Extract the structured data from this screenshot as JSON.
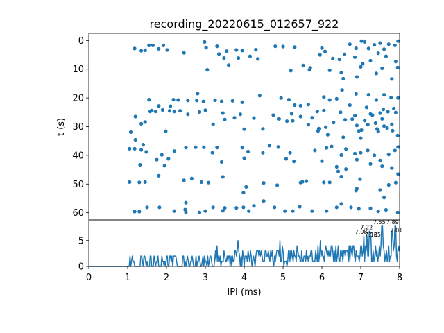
{
  "chart_data": [
    {
      "type": "scatter",
      "title": "recording_20220615_012657_922",
      "xlabel": "",
      "ylabel": "t (s)",
      "xlim": [
        0,
        8
      ],
      "ylim": [
        62.5,
        -2.5
      ],
      "y_inverted": true,
      "xticks": [],
      "yticks": [
        "0",
        "10",
        "20",
        "30",
        "40",
        "50",
        "60"
      ],
      "marker_color": "#1f77b4",
      "grid": false,
      "points": [
        [
          1.18,
          59.6
        ],
        [
          1.3,
          59.6
        ],
        [
          1.5,
          58.1
        ],
        [
          1.82,
          58.1
        ],
        [
          2.2,
          59.4
        ],
        [
          2.48,
          58.9
        ],
        [
          2.5,
          56.5
        ],
        [
          2.5,
          59.8
        ],
        [
          2.85,
          59.9
        ],
        [
          3.0,
          59.4
        ],
        [
          3.2,
          58.1
        ],
        [
          3.45,
          59.3
        ],
        [
          3.5,
          58.3
        ],
        [
          3.8,
          58.3
        ],
        [
          3.98,
          58.1
        ],
        [
          4.12,
          59.4
        ],
        [
          4.25,
          57.6
        ],
        [
          4.5,
          55.9
        ],
        [
          4.78,
          58.1
        ],
        [
          5.05,
          59.4
        ],
        [
          5.25,
          59.4
        ],
        [
          5.43,
          57.9
        ],
        [
          5.75,
          59.4
        ],
        [
          6.12,
          59.4
        ],
        [
          6.38,
          58.1
        ],
        [
          6.5,
          56.9
        ],
        [
          6.75,
          58.1
        ],
        [
          6.95,
          58.6
        ],
        [
          7.25,
          58.5
        ],
        [
          7.45,
          59.5
        ],
        [
          7.65,
          59.0
        ],
        [
          7.95,
          59.9
        ],
        [
          1.05,
          49.3
        ],
        [
          1.3,
          49.4
        ],
        [
          1.45,
          49.3
        ],
        [
          1.8,
          47.1
        ],
        [
          1.95,
          43.6
        ],
        [
          2.05,
          41.2
        ],
        [
          2.45,
          48.7
        ],
        [
          2.65,
          48.1
        ],
        [
          2.9,
          49.3
        ],
        [
          3.08,
          49.5
        ],
        [
          3.45,
          47.5
        ],
        [
          3.98,
          53.0
        ],
        [
          4.05,
          51.0
        ],
        [
          4.5,
          49.6
        ],
        [
          4.85,
          50.4
        ],
        [
          5.45,
          49.5
        ],
        [
          5.6,
          49.0
        ],
        [
          6.05,
          49.4
        ],
        [
          6.2,
          49.4
        ],
        [
          6.5,
          47.4
        ],
        [
          6.9,
          51.6
        ],
        [
          6.98,
          48.3
        ],
        [
          7.5,
          52.1
        ],
        [
          7.72,
          50.3
        ],
        [
          7.9,
          49.5
        ],
        [
          6.88,
          52.3
        ],
        [
          5.5,
          49.2
        ],
        [
          7.6,
          54.7
        ],
        [
          1.05,
          37.7
        ],
        [
          1.18,
          37.7
        ],
        [
          1.2,
          34.6
        ],
        [
          1.32,
          43.3
        ],
        [
          1.35,
          38.1
        ],
        [
          1.4,
          36.3
        ],
        [
          1.48,
          38.8
        ],
        [
          1.75,
          41.5
        ],
        [
          1.88,
          39.8
        ],
        [
          2.2,
          38.5
        ],
        [
          2.5,
          37.3
        ],
        [
          2.75,
          37.2
        ],
        [
          2.96,
          37.2
        ],
        [
          3.18,
          39.1
        ],
        [
          3.3,
          37.3
        ],
        [
          3.42,
          42.3
        ],
        [
          3.95,
          37.3
        ],
        [
          4.0,
          41.0
        ],
        [
          4.1,
          38.7
        ],
        [
          4.48,
          39.1
        ],
        [
          4.65,
          36.6
        ],
        [
          4.88,
          37.1
        ],
        [
          5.08,
          41.2
        ],
        [
          5.28,
          42.1
        ],
        [
          5.18,
          39.1
        ],
        [
          5.82,
          38.3
        ],
        [
          6.12,
          37.4
        ],
        [
          6.25,
          36.9
        ],
        [
          6.5,
          39.9
        ],
        [
          6.62,
          37.8
        ],
        [
          6.85,
          39.4
        ],
        [
          7.0,
          39.1
        ],
        [
          7.18,
          38.3
        ],
        [
          7.35,
          40.0
        ],
        [
          7.5,
          41.8
        ],
        [
          7.72,
          39.7
        ],
        [
          7.88,
          38.3
        ],
        [
          7.96,
          37.1
        ],
        [
          6.0,
          42.0
        ],
        [
          6.38,
          44.0
        ],
        [
          6.9,
          41.5
        ],
        [
          7.25,
          43.0
        ],
        [
          7.55,
          43.8
        ],
        [
          7.8,
          44.4
        ],
        [
          7.96,
          46.5
        ],
        [
          6.42,
          45.6
        ],
        [
          6.62,
          44.8
        ],
        [
          1.08,
          31.9
        ],
        [
          1.2,
          26.5
        ],
        [
          1.35,
          29.0
        ],
        [
          1.45,
          28.4
        ],
        [
          1.58,
          24.7
        ],
        [
          1.72,
          24.7
        ],
        [
          1.9,
          24.2
        ],
        [
          1.98,
          31.6
        ],
        [
          2.08,
          24.5
        ],
        [
          2.2,
          24.7
        ],
        [
          2.35,
          24.5
        ],
        [
          2.55,
          25.7
        ],
        [
          2.85,
          24.9
        ],
        [
          3.0,
          24.3
        ],
        [
          3.2,
          29.2
        ],
        [
          3.45,
          25.3
        ],
        [
          3.5,
          27.5
        ],
        [
          3.75,
          26.9
        ],
        [
          3.9,
          25.7
        ],
        [
          4.0,
          30.9
        ],
        [
          4.25,
          27.0
        ],
        [
          4.48,
          30.8
        ],
        [
          4.75,
          26.0
        ],
        [
          4.9,
          27.3
        ],
        [
          5.1,
          28.1
        ],
        [
          5.22,
          25.5
        ],
        [
          5.45,
          26.5
        ],
        [
          5.65,
          29.3
        ],
        [
          5.75,
          26.9
        ],
        [
          5.92,
          30.7
        ],
        [
          6.1,
          30.2
        ],
        [
          6.3,
          28.6
        ],
        [
          6.48,
          25.0
        ],
        [
          6.6,
          27.6
        ],
        [
          6.78,
          27.4
        ],
        [
          6.9,
          29.6
        ],
        [
          7.02,
          31.2
        ],
        [
          7.18,
          29.3
        ],
        [
          7.3,
          26.0
        ],
        [
          7.42,
          30.8
        ],
        [
          7.55,
          27.3
        ],
        [
          7.68,
          30.5
        ],
        [
          7.82,
          31.4
        ],
        [
          7.95,
          33.1
        ],
        [
          6.15,
          32.8
        ],
        [
          6.55,
          33.7
        ],
        [
          7.0,
          34.0
        ],
        [
          6.85,
          26.2
        ],
        [
          7.25,
          25.6
        ],
        [
          7.5,
          25.3
        ],
        [
          7.7,
          24.8
        ],
        [
          7.9,
          25.1
        ],
        [
          7.15,
          23.3
        ],
        [
          7.58,
          24.0
        ],
        [
          7.85,
          23.7
        ],
        [
          7.1,
          27.9
        ],
        [
          7.38,
          28.8
        ],
        [
          7.6,
          29.8
        ],
        [
          7.8,
          29.2
        ],
        [
          6.95,
          31.5
        ],
        [
          7.45,
          31.7
        ],
        [
          5.25,
          28.0
        ],
        [
          5.9,
          31.5
        ],
        [
          1.55,
          20.6
        ],
        [
          1.62,
          24.4
        ],
        [
          1.8,
          22.8
        ],
        [
          2.18,
          20.6
        ],
        [
          2.3,
          20.7
        ],
        [
          2.55,
          20.9
        ],
        [
          2.78,
          20.9
        ],
        [
          2.95,
          21.2
        ],
        [
          3.25,
          20.8
        ],
        [
          3.42,
          21.2
        ],
        [
          3.7,
          21.0
        ],
        [
          3.95,
          21.5
        ],
        [
          4.4,
          19.2
        ],
        [
          4.95,
          20.0
        ],
        [
          5.15,
          20.6
        ],
        [
          5.3,
          22.5
        ],
        [
          5.45,
          22.7
        ],
        [
          5.65,
          22.3
        ],
        [
          5.88,
          24.7
        ],
        [
          6.05,
          19.7
        ],
        [
          6.2,
          20.7
        ],
        [
          6.38,
          20.3
        ],
        [
          6.52,
          17.3
        ],
        [
          6.72,
          22.5
        ],
        [
          6.88,
          18.6
        ],
        [
          7.2,
          18.9
        ],
        [
          7.4,
          20.7
        ],
        [
          7.6,
          18.9
        ],
        [
          7.78,
          19.9
        ],
        [
          7.96,
          20.0
        ],
        [
          2.1,
          22.9
        ],
        [
          2.8,
          18.5
        ],
        [
          6.05,
          24.4
        ],
        [
          1.18,
          2.8
        ],
        [
          1.35,
          3.6
        ],
        [
          1.45,
          3.4
        ],
        [
          1.55,
          1.7
        ],
        [
          1.65,
          1.7
        ],
        [
          1.8,
          2.9
        ],
        [
          1.92,
          1.7
        ],
        [
          2.02,
          3.3
        ],
        [
          2.45,
          4.3
        ],
        [
          2.98,
          0.5
        ],
        [
          3.02,
          2.5
        ],
        [
          3.3,
          2.0
        ],
        [
          3.35,
          4.7
        ],
        [
          3.48,
          6.1
        ],
        [
          3.55,
          3.7
        ],
        [
          3.6,
          8.6
        ],
        [
          3.8,
          3.3
        ],
        [
          3.85,
          6.1
        ],
        [
          3.95,
          3.5
        ],
        [
          4.3,
          3.2
        ],
        [
          4.35,
          6.4
        ],
        [
          4.8,
          2.0
        ],
        [
          5.0,
          2.1
        ],
        [
          5.3,
          2.3
        ],
        [
          5.52,
          8.7
        ],
        [
          5.68,
          10.2
        ],
        [
          5.95,
          5.0
        ],
        [
          6.0,
          2.6
        ],
        [
          6.08,
          3.8
        ],
        [
          6.2,
          10.4
        ],
        [
          6.28,
          6.3
        ],
        [
          6.45,
          6.6
        ],
        [
          6.58,
          4.8
        ],
        [
          6.72,
          1.3
        ],
        [
          6.88,
          2.7
        ],
        [
          7.02,
          0.2
        ],
        [
          7.1,
          0.5
        ],
        [
          7.2,
          2.8
        ],
        [
          7.35,
          1.5
        ],
        [
          7.5,
          0.9
        ],
        [
          7.6,
          3.0
        ],
        [
          7.72,
          1.3
        ],
        [
          7.88,
          1.7
        ],
        [
          7.96,
          0.2
        ],
        [
          6.85,
          5.8
        ],
        [
          7.05,
          8.1
        ],
        [
          7.25,
          7.0
        ],
        [
          7.45,
          4.4
        ],
        [
          7.65,
          5.5
        ],
        [
          7.9,
          7.3
        ],
        [
          7.0,
          9.2
        ],
        [
          7.55,
          9.7
        ],
        [
          7.95,
          9.4
        ],
        [
          6.55,
          13.3
        ],
        [
          6.9,
          12.7
        ],
        [
          7.4,
          11.5
        ],
        [
          7.8,
          13.4
        ],
        [
          3.05,
          10.2
        ],
        [
          4.15,
          5.5
        ],
        [
          5.2,
          10.5
        ],
        [
          5.7,
          9.5
        ],
        [
          6.5,
          11.2
        ]
      ]
    },
    {
      "type": "line",
      "title": "",
      "xlabel": "IPI (ms)",
      "ylabel": "",
      "xlim": [
        0,
        8
      ],
      "ylim": [
        0,
        9
      ],
      "xticks": [
        "0",
        "1",
        "2",
        "3",
        "4",
        "5",
        "6",
        "7",
        "8"
      ],
      "yticks": [
        "0",
        "5"
      ],
      "line_color": "#1f77b4",
      "zero_until": 1.0,
      "step": 0.02,
      "seed": 922,
      "peak_labels": [
        "7.08",
        "7.16",
        "7.22",
        "7.25",
        "7.55",
        "7.81",
        "7.89"
      ],
      "peaks": [
        [
          7.08,
          5.9
        ],
        [
          7.16,
          5.9
        ],
        [
          7.22,
          6.8
        ],
        [
          7.25,
          5.9
        ],
        [
          7.55,
          7.8
        ],
        [
          7.81,
          6.8
        ],
        [
          7.89,
          7.8
        ]
      ]
    }
  ]
}
